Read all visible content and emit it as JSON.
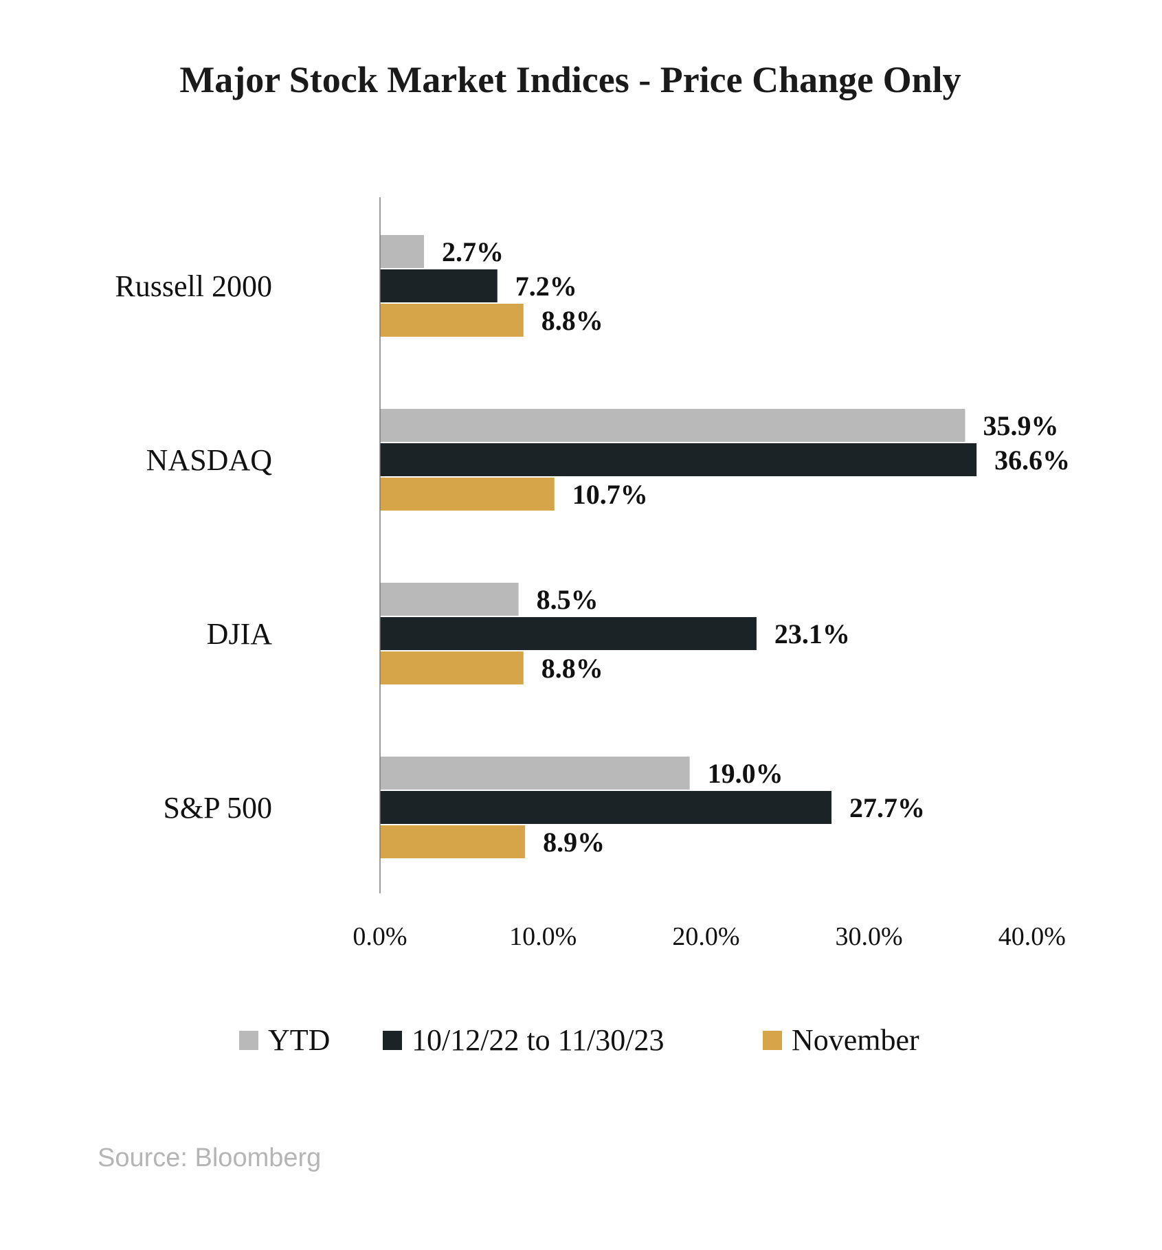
{
  "chart_data": {
    "type": "bar",
    "orientation": "horizontal",
    "title": "Major Stock Market Indices - Price Change Only",
    "categories": [
      "Russell 2000",
      "NASDAQ",
      "DJIA",
      "S&P 500"
    ],
    "series": [
      {
        "name": "YTD",
        "color": "#b9b9b9",
        "values": [
          2.7,
          35.9,
          8.5,
          19.0
        ],
        "labels": [
          "2.7%",
          "35.9%",
          "8.5%",
          "19.0%"
        ]
      },
      {
        "name": "10/12/22 to 11/30/23",
        "color": "#1b2326",
        "values": [
          7.2,
          36.6,
          23.1,
          27.7
        ],
        "labels": [
          "7.2%",
          "36.6%",
          "23.1%",
          "27.7%"
        ]
      },
      {
        "name": "November",
        "color": "#d6a549",
        "values": [
          8.8,
          10.7,
          8.8,
          8.9
        ],
        "labels": [
          "8.8%",
          "10.7%",
          "8.8%",
          "8.9%"
        ]
      }
    ],
    "xlim": [
      0,
      40
    ],
    "x_ticks": [
      0,
      10,
      20,
      30,
      40
    ],
    "x_tick_labels": [
      "0.0%",
      "10.0%",
      "20.0%",
      "30.0%",
      "40.0%"
    ],
    "xlabel": "",
    "ylabel": "",
    "grid": false,
    "legend_position": "bottom",
    "source": "Source:  Bloomberg"
  }
}
